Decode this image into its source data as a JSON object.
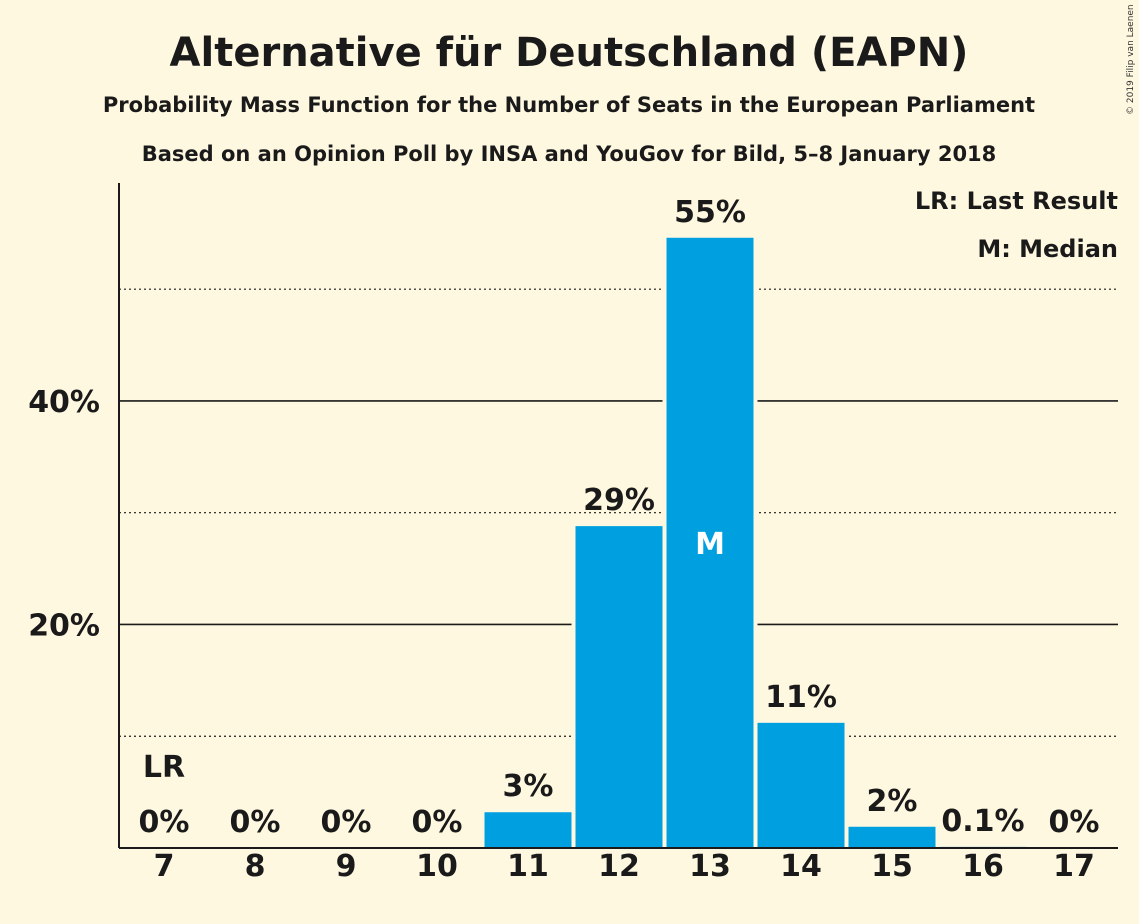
{
  "title": "Alternative für Deutschland (EAPN)",
  "subtitle": "Probability Mass Function for the Number of Seats in the European Parliament",
  "subtitle2": "Based on an Opinion Poll by INSA and YouGov for Bild, 5–8 January 2018",
  "copyright": "© 2019 Filip van Laenen",
  "legend": {
    "lr": "LR: Last Result",
    "m": "M: Median"
  },
  "colors": {
    "bar": "#009fe0",
    "background": "#fff8e1",
    "text": "#1a1a1a"
  },
  "chart_data": {
    "type": "bar",
    "categories": [
      "7",
      "8",
      "9",
      "10",
      "11",
      "12",
      "13",
      "14",
      "15",
      "16",
      "17"
    ],
    "values": [
      0,
      0,
      0,
      0,
      3.2,
      28.8,
      54.6,
      11.2,
      1.9,
      0.1,
      0
    ],
    "value_labels": [
      "0%",
      "0%",
      "0%",
      "0%",
      "3%",
      "29%",
      "55%",
      "11%",
      "2%",
      "0.1%",
      "0%"
    ],
    "ylim": [
      0,
      59.5
    ],
    "yticks": [
      20,
      40
    ],
    "ytick_labels": [
      "20%",
      "40%"
    ],
    "grid_solid": [
      20,
      40
    ],
    "grid_dotted": [
      10,
      30,
      50
    ],
    "last_result": {
      "category": "7",
      "label": "LR"
    },
    "median": {
      "category": "13",
      "label": "M"
    },
    "legend_position": "top-right"
  }
}
